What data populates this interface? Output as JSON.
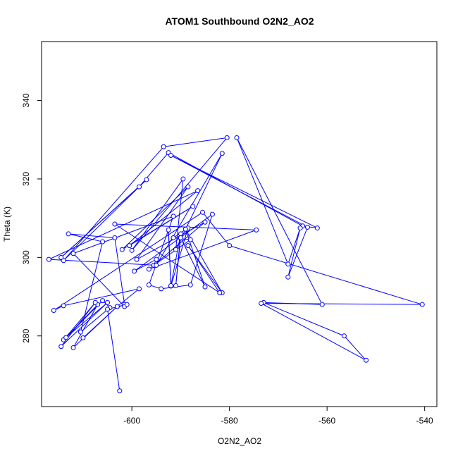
{
  "chart_data": {
    "type": "scatter",
    "title": "ATOM1 Southbound O2N2_AO2",
    "xlabel": "O2N2_AO2",
    "ylabel": "Theta (K)",
    "xlim": [
      -618.5,
      -537.5
    ],
    "ylim": [
      262,
      355
    ],
    "x_ticks": [
      -600,
      -580,
      -560,
      -540
    ],
    "y_ticks": [
      280,
      300,
      320,
      340
    ],
    "grid": false,
    "legend": "none",
    "colors": {
      "series": "#0000ff",
      "axis": "#000000",
      "background": "#ffffff"
    },
    "series": [
      {
        "marker": "open-circle",
        "line": true,
        "points": [
          [
            -610.0,
            279.5
          ],
          [
            -603.0,
            287.5
          ],
          [
            -612.0,
            277.0
          ],
          [
            -607.0,
            288.0
          ],
          [
            -614.0,
            279.0
          ],
          [
            -607.5,
            288.5
          ],
          [
            -614.5,
            277.3
          ],
          [
            -605.0,
            288.5
          ],
          [
            -613.5,
            279.6
          ],
          [
            -606.0,
            289.0
          ],
          [
            -604.5,
            287.2
          ],
          [
            -610.5,
            281.0
          ],
          [
            -606.0,
            304.0
          ],
          [
            -613.0,
            306.0
          ],
          [
            -603.5,
            305.0
          ],
          [
            -601.5,
            288.0
          ],
          [
            -601.5,
            287.5
          ],
          [
            -612.0,
            301.0
          ],
          [
            -591.5,
            310.5
          ],
          [
            -596.5,
            293.0
          ],
          [
            -594.0,
            292.0
          ],
          [
            -588.0,
            293.0
          ],
          [
            -583.5,
            311.0
          ],
          [
            -599.5,
            296.5
          ],
          [
            -595.0,
            299.5
          ],
          [
            -595.5,
            298.0
          ],
          [
            -588.0,
            304.5
          ],
          [
            -591.5,
            305.0
          ],
          [
            -588.5,
            307.5
          ],
          [
            -592.0,
            292.7
          ],
          [
            -592.5,
            307.0
          ],
          [
            -592.0,
            292.8
          ],
          [
            -590.0,
            306.0
          ],
          [
            -591.0,
            292.8
          ],
          [
            -590.0,
            305.0
          ],
          [
            -585.0,
            292.5
          ],
          [
            -589.0,
            307.2
          ],
          [
            -581.5,
            291.0
          ],
          [
            -588.5,
            303.0
          ],
          [
            -582.0,
            291.0
          ],
          [
            -603.5,
            308.5
          ],
          [
            -574.5,
            307.0
          ],
          [
            -596.5,
            297.0
          ],
          [
            -585.0,
            309.0
          ],
          [
            -599.0,
            299.5
          ],
          [
            -588.5,
            318.0
          ],
          [
            -602.0,
            302.0
          ],
          [
            -587.5,
            313.0
          ],
          [
            -600.5,
            303.0
          ],
          [
            -586.5,
            317.0
          ],
          [
            -617.0,
            299.5
          ],
          [
            -595.0,
            298.0
          ],
          [
            -581.5,
            326.5
          ],
          [
            -591.0,
            302.0
          ],
          [
            -589.5,
            320.0
          ],
          [
            -600.0,
            301.8
          ],
          [
            -580.5,
            330.5
          ],
          [
            -593.5,
            328.2
          ],
          [
            -614.0,
            299.2
          ],
          [
            -597.0,
            319.8
          ],
          [
            -614.5,
            300.0
          ],
          [
            -598.5,
            318.0
          ],
          [
            -592.5,
            326.7
          ],
          [
            -565.0,
            308.0
          ],
          [
            -562.0,
            307.5
          ],
          [
            -592.0,
            326.0
          ],
          [
            -564.0,
            307.7
          ],
          [
            -568.0,
            295.0
          ],
          [
            -565.5,
            307.5
          ],
          [
            -568.0,
            298.3
          ],
          [
            -578.5,
            330.5
          ],
          [
            -561.0,
            288.0
          ],
          [
            -573.0,
            288.5
          ],
          [
            -556.5,
            280.0
          ],
          [
            -552.0,
            273.8
          ],
          [
            -573.5,
            288.3
          ],
          [
            -540.5,
            288.0
          ],
          [
            -580.0,
            303.0
          ],
          [
            -585.5,
            311.5
          ],
          [
            -616.0,
            286.5
          ],
          [
            -614.0,
            287.7
          ],
          [
            -598.5,
            292.0
          ],
          [
            -603.0,
            287.5
          ],
          [
            -601.0,
            288.0
          ],
          [
            -605.0,
            286.8
          ],
          [
            -602.5,
            266.0
          ]
        ]
      }
    ]
  }
}
